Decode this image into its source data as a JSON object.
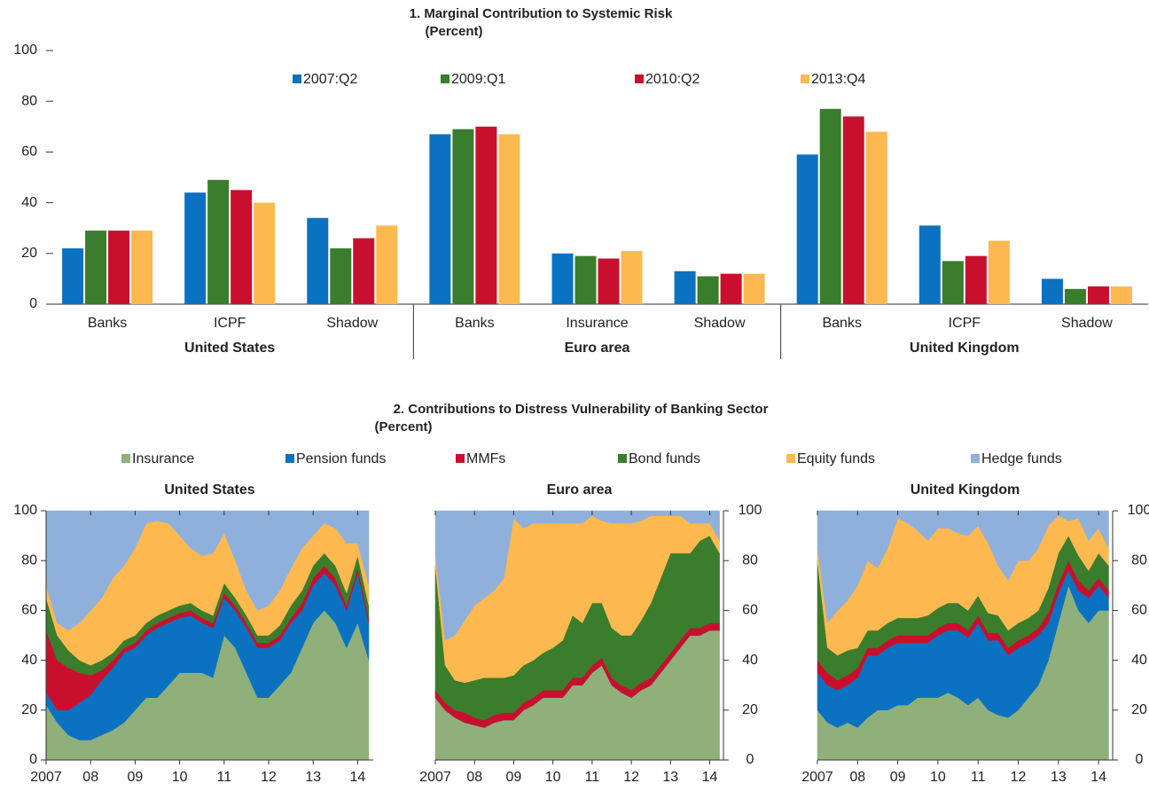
{
  "chart_data": [
    {
      "type": "bar",
      "title": "1. Marginal Contribution to Systemic Risk",
      "subtitle": "(Percent)",
      "groups": [
        {
          "name": "United States",
          "categories": [
            "Banks",
            "ICPF",
            "Shadow"
          ]
        },
        {
          "name": "Euro area",
          "categories": [
            "Banks",
            "Insurance",
            "Shadow"
          ]
        },
        {
          "name": "United Kingdom",
          "categories": [
            "Banks",
            "ICPF",
            "Shadow"
          ]
        }
      ],
      "series": [
        {
          "name": "2007:Q2",
          "color": "#0b72c2",
          "values": [
            22,
            44,
            34,
            67,
            20,
            13,
            59,
            31,
            10
          ]
        },
        {
          "name": "2009:Q1",
          "color": "#3a7d2c",
          "values": [
            29,
            49,
            22,
            69,
            19,
            11,
            77,
            17,
            6
          ]
        },
        {
          "name": "2010:Q2",
          "color": "#c8102e",
          "values": [
            29,
            45,
            26,
            70,
            18,
            12,
            74,
            19,
            7
          ]
        },
        {
          "name": "2013:Q4",
          "color": "#fdb94f",
          "values": [
            29,
            40,
            31,
            67,
            21,
            12,
            68,
            25,
            7
          ]
        }
      ],
      "ylim": [
        0,
        100
      ],
      "yticks": [
        0,
        20,
        40,
        60,
        80,
        100
      ]
    },
    {
      "type": "stacked_area",
      "title": "2. Contributions to Distress Vulnerability of Banking Sector",
      "subtitle": "(Percent)",
      "series": [
        {
          "name": "Insurance",
          "color": "#8fb07a"
        },
        {
          "name": "Pension funds",
          "color": "#0b72c2"
        },
        {
          "name": "MMFs",
          "color": "#c8102e"
        },
        {
          "name": "Bond funds",
          "color": "#3a7d2c"
        },
        {
          "name": "Equity funds",
          "color": "#fdb94f"
        },
        {
          "name": "Hedge funds",
          "color": "#8fb0db"
        }
      ],
      "x": [
        2007,
        2007.25,
        2007.5,
        2007.75,
        2008,
        2008.25,
        2008.5,
        2008.75,
        2009,
        2009.25,
        2009.5,
        2009.75,
        2010,
        2010.25,
        2010.5,
        2010.75,
        2011,
        2011.25,
        2011.5,
        2011.75,
        2012,
        2012.25,
        2012.5,
        2012.75,
        2013,
        2013.25,
        2013.5,
        2013.75,
        2014,
        2014.25
      ],
      "xlim": [
        2007,
        2014.35
      ],
      "xticks": [
        2007,
        {
          "value": 2008,
          "label": "08"
        },
        {
          "value": 2009,
          "label": "09"
        },
        {
          "value": 2010,
          "label": "10"
        },
        {
          "value": 2011,
          "label": "11"
        },
        {
          "value": 2012,
          "label": "12"
        },
        {
          "value": 2013,
          "label": "13"
        },
        {
          "value": 2014,
          "label": "14"
        }
      ],
      "ylim": [
        0,
        100
      ],
      "yticks": [
        0,
        20,
        40,
        60,
        80,
        100
      ],
      "panels": [
        {
          "title": "United States",
          "y_axis": "left",
          "values": [
            [
              22,
              15,
              10,
              8,
              8,
              10,
              12,
              15,
              20,
              25,
              25,
              30,
              35,
              35,
              35,
              33,
              50,
              45,
              35,
              25,
              25,
              30,
              35,
              45,
              55,
              60,
              55,
              45,
              55,
              40
            ],
            [
              5,
              5,
              10,
              15,
              18,
              22,
              25,
              28,
              25,
              25,
              28,
              25,
              22,
              23,
              20,
              20,
              15,
              15,
              18,
              20,
              20,
              18,
              20,
              15,
              15,
              15,
              15,
              15,
              20,
              15
            ],
            [
              25,
              20,
              17,
              12,
              8,
              4,
              3,
              2,
              2,
              2,
              2,
              2,
              2,
              2,
              2,
              2,
              2,
              2,
              2,
              2,
              2,
              2,
              2,
              3,
              3,
              3,
              3,
              2,
              2,
              2
            ],
            [
              13,
              10,
              7,
              5,
              4,
              4,
              3,
              3,
              3,
              3,
              3,
              3,
              3,
              3,
              3,
              3,
              4,
              3,
              3,
              3,
              3,
              4,
              5,
              5,
              5,
              5,
              5,
              5,
              5,
              5
            ],
            [
              5,
              5,
              8,
              15,
              22,
              25,
              30,
              30,
              35,
              40,
              38,
              35,
              28,
              22,
              22,
              25,
              20,
              15,
              10,
              10,
              12,
              14,
              15,
              17,
              12,
              12,
              15,
              20,
              5,
              8
            ],
            [
              30,
              45,
              48,
              45,
              40,
              35,
              27,
              22,
              15,
              5,
              4,
              5,
              10,
              15,
              18,
              17,
              9,
              20,
              32,
              40,
              38,
              32,
              23,
              15,
              10,
              5,
              7,
              13,
              13,
              30
            ]
          ]
        },
        {
          "title": "Euro area",
          "y_axis": "right",
          "values": [
            [
              25,
              20,
              17,
              15,
              14,
              13,
              15,
              16,
              16,
              20,
              22,
              25,
              25,
              25,
              30,
              30,
              35,
              38,
              30,
              27,
              25,
              28,
              30,
              35,
              40,
              45,
              50,
              50,
              52,
              52
            ],
            [
              0,
              0,
              0,
              0,
              0,
              0,
              0,
              0,
              0,
              0,
              0,
              0,
              0,
              0,
              0,
              0,
              0,
              0,
              0,
              0,
              0,
              0,
              0,
              0,
              0,
              0,
              0,
              0,
              0,
              0
            ],
            [
              3,
              3,
              3,
              4,
              3,
              3,
              3,
              3,
              3,
              3,
              3,
              3,
              3,
              3,
              3,
              3,
              3,
              3,
              3,
              3,
              3,
              3,
              3,
              3,
              3,
              3,
              3,
              3,
              3,
              3
            ],
            [
              50,
              15,
              12,
              12,
              15,
              17,
              15,
              14,
              15,
              15,
              15,
              15,
              17,
              20,
              25,
              22,
              25,
              22,
              20,
              20,
              22,
              25,
              30,
              35,
              40,
              35,
              30,
              35,
              35,
              28
            ],
            [
              5,
              10,
              18,
              25,
              30,
              32,
              35,
              40,
              63,
              55,
              55,
              52,
              50,
              47,
              37,
              40,
              35,
              33,
              42,
              45,
              45,
              40,
              35,
              25,
              15,
              15,
              12,
              7,
              5,
              5
            ],
            [
              17,
              52,
              50,
              44,
              38,
              35,
              32,
              27,
              3,
              7,
              5,
              5,
              5,
              5,
              5,
              5,
              2,
              4,
              5,
              5,
              5,
              4,
              2,
              2,
              2,
              2,
              5,
              5,
              5,
              12
            ]
          ]
        },
        {
          "title": "United Kingdom",
          "y_axis": "right",
          "values": [
            [
              20,
              15,
              13,
              15,
              13,
              17,
              20,
              20,
              22,
              22,
              25,
              25,
              25,
              27,
              25,
              22,
              25,
              20,
              18,
              17,
              20,
              25,
              30,
              40,
              55,
              70,
              60,
              55,
              60,
              60
            ],
            [
              15,
              15,
              15,
              15,
              20,
              25,
              22,
              25,
              25,
              25,
              22,
              22,
              25,
              25,
              27,
              27,
              30,
              28,
              30,
              25,
              25,
              22,
              20,
              15,
              12,
              6,
              8,
              10,
              10,
              5
            ],
            [
              5,
              5,
              4,
              4,
              4,
              3,
              3,
              3,
              3,
              3,
              3,
              3,
              3,
              3,
              3,
              3,
              3,
              3,
              3,
              3,
              3,
              3,
              3,
              4,
              4,
              4,
              4,
              3,
              3,
              3
            ],
            [
              40,
              10,
              10,
              10,
              8,
              7,
              7,
              7,
              7,
              7,
              7,
              8,
              8,
              8,
              8,
              8,
              8,
              8,
              7,
              7,
              7,
              7,
              7,
              10,
              12,
              10,
              10,
              8,
              10,
              10
            ],
            [
              5,
              10,
              18,
              20,
              25,
              28,
              25,
              30,
              40,
              38,
              35,
              30,
              32,
              30,
              28,
              30,
              28,
              28,
              20,
              20,
              25,
              23,
              25,
              25,
              15,
              6,
              15,
              12,
              10,
              7
            ],
            [
              15,
              45,
              40,
              36,
              30,
              20,
              23,
              15,
              3,
              5,
              8,
              12,
              7,
              7,
              9,
              10,
              6,
              13,
              22,
              28,
              20,
              20,
              15,
              6,
              2,
              4,
              3,
              12,
              7,
              15
            ]
          ]
        }
      ]
    }
  ]
}
